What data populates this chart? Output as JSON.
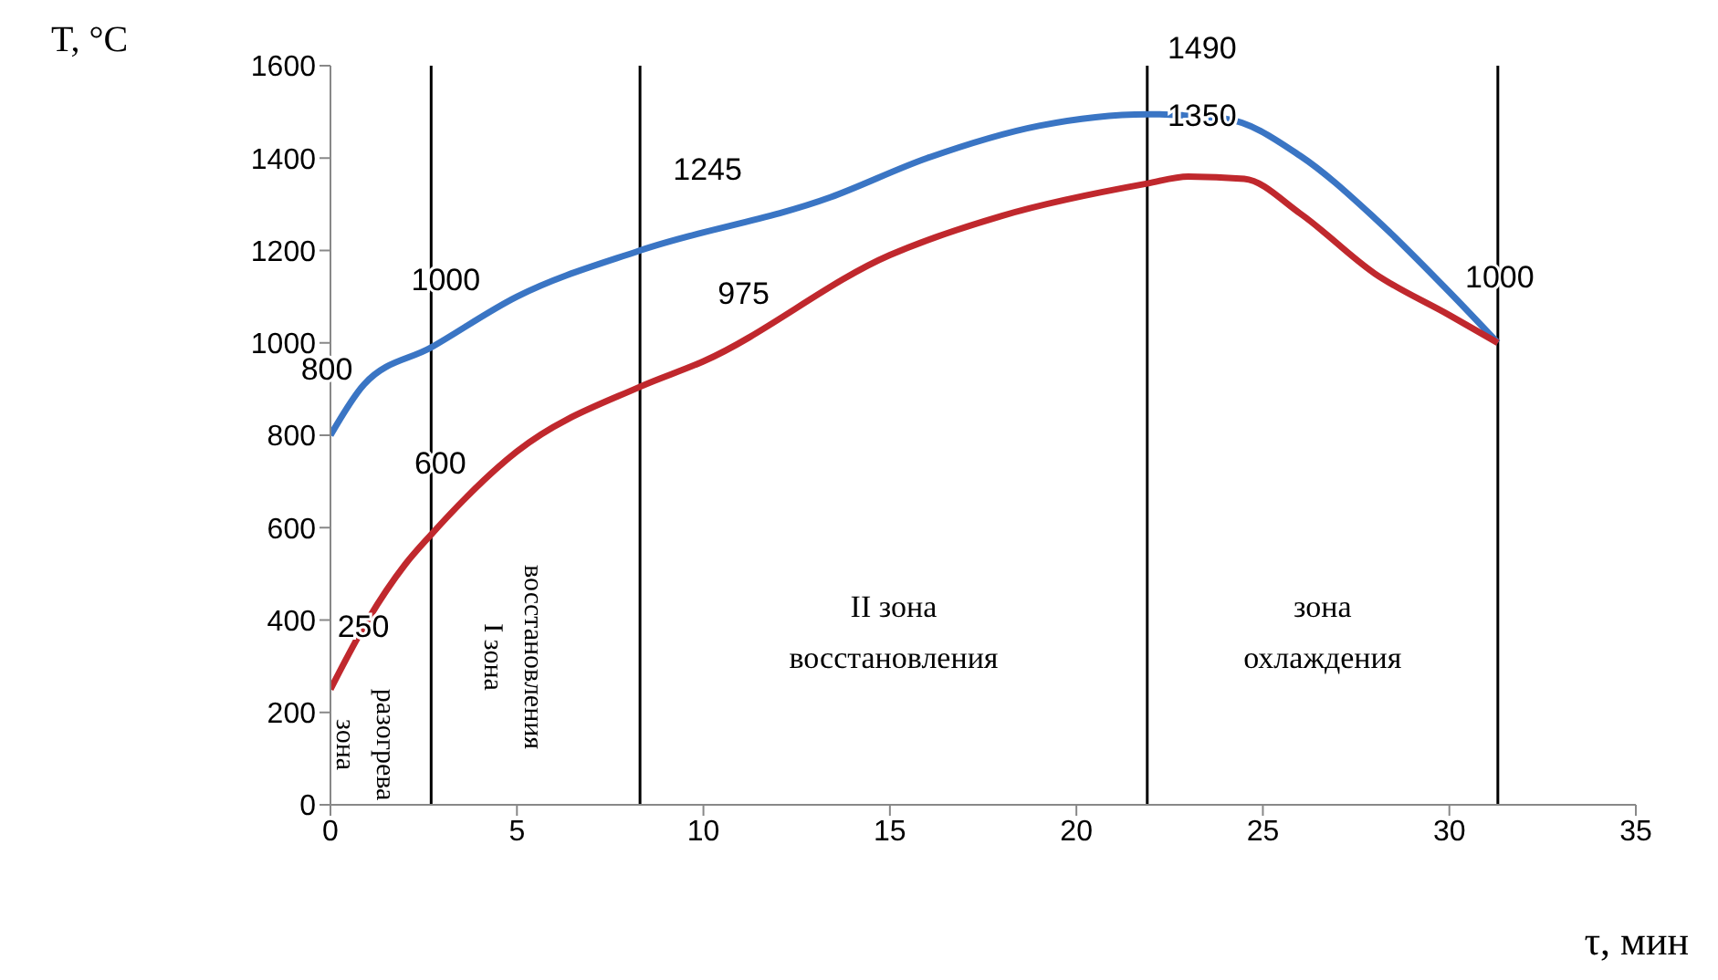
{
  "chart_data": {
    "type": "line",
    "xlabel": "τ, мин",
    "ylabel": "T, °C",
    "xlim": [
      0,
      35
    ],
    "xticks": [
      0,
      5,
      10,
      15,
      20,
      25,
      30,
      35
    ],
    "ylim": [
      0,
      1600
    ],
    "yticks": [
      0,
      200,
      400,
      600,
      800,
      1000,
      1200,
      1400,
      1600
    ],
    "marker": "none",
    "line_style": "solid",
    "series": [
      {
        "color": "#3a75c4",
        "x": [
          0,
          0.9,
          2.7,
          5,
          8.3,
          13.4,
          16,
          19,
          21.9,
          24,
          26,
          28,
          30,
          31.3
        ],
        "values": [
          800,
          910,
          990,
          1100,
          1200,
          1315,
          1400,
          1470,
          1495,
          1485,
          1405,
          1270,
          1110,
          1000
        ]
      },
      {
        "color": "#c0282d",
        "x": [
          0,
          1,
          2,
          2.7,
          5,
          8.3,
          10,
          15,
          18,
          21.9,
          23,
          24.5,
          26,
          28,
          30,
          31.3
        ],
        "values": [
          250,
          400,
          520,
          585,
          765,
          905,
          960,
          1190,
          1275,
          1345,
          1360,
          1355,
          1280,
          1150,
          1060,
          1000
        ]
      }
    ],
    "ref_lines": [
      {
        "axis": "x",
        "value": 2.7,
        "color": "#000000"
      },
      {
        "axis": "x",
        "value": 8.3,
        "color": "#000000"
      },
      {
        "axis": "x",
        "value": 21.9,
        "color": "#000000"
      },
      {
        "axis": "x",
        "value": 31.3,
        "color": "#000000"
      }
    ],
    "annotations": [
      "зона\nразогрева",
      "I зона\nвосстановления",
      "II зона\nвосстановления",
      "зона\nохлаждения",
      {
        "text": "800",
        "x": 0,
        "y": 800
      },
      {
        "text": "1000",
        "x": 2.7,
        "y": 990
      },
      {
        "text": "1245",
        "x": 8.3,
        "y": 1200
      },
      {
        "text": "1490",
        "x": 21.9,
        "y": 1495
      },
      {
        "text": "250",
        "x": 0,
        "y": 250
      },
      {
        "text": "600",
        "x": 2.7,
        "y": 585
      },
      {
        "text": "975",
        "x": 10,
        "y": 960
      },
      {
        "text": "1350",
        "x": 21.9,
        "y": 1345
      },
      {
        "text": "1000",
        "x": 31.3,
        "y": 1000
      }
    ]
  }
}
